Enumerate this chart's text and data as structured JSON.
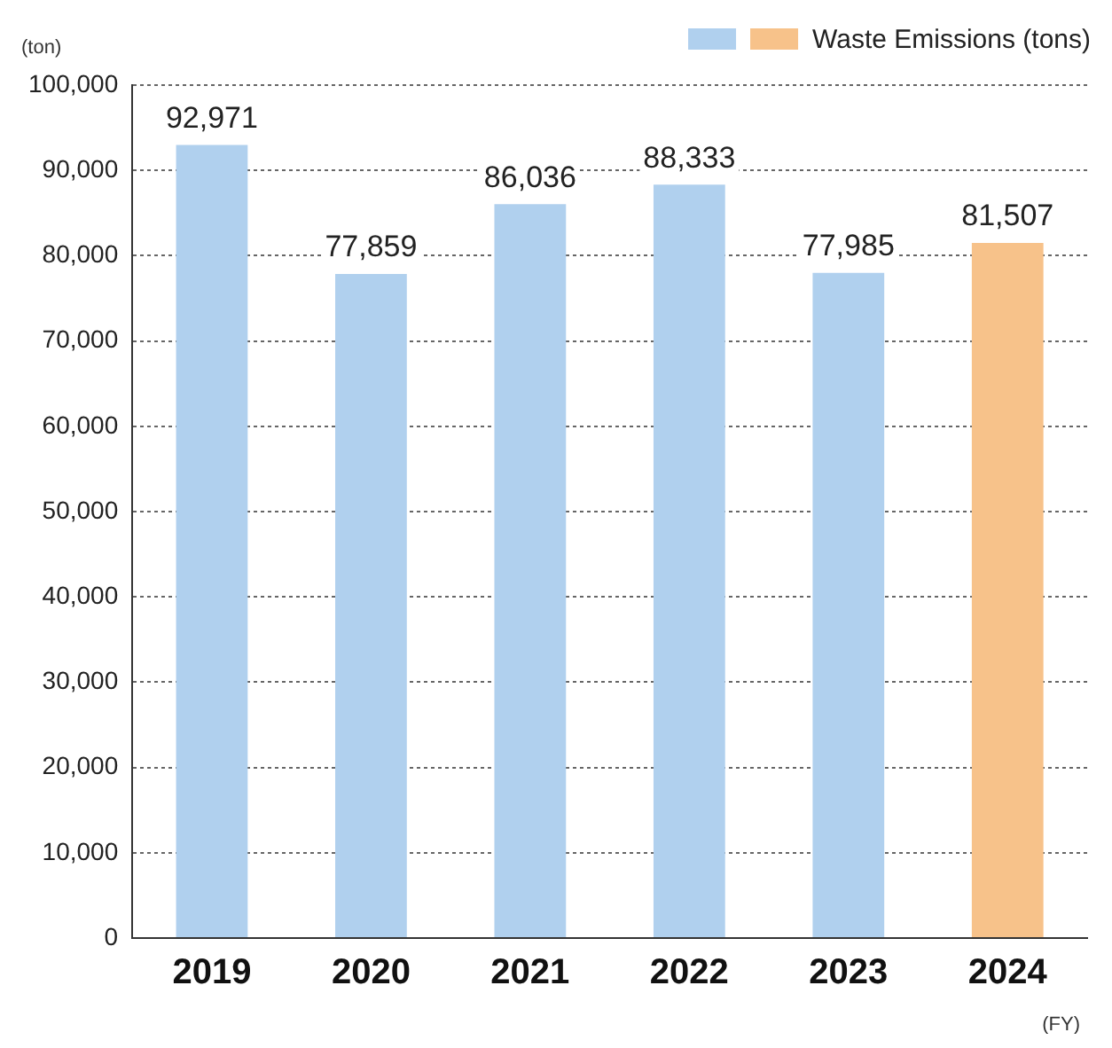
{
  "chart_data": {
    "type": "bar",
    "ylabel": "(ton)",
    "xlabel": "(FY)",
    "categories": [
      "2019",
      "2020",
      "2021",
      "2022",
      "2023",
      "2024"
    ],
    "series": [
      {
        "name": "Waste Emissions (tons)",
        "values": [
          92971,
          77859,
          86036,
          88333,
          77985,
          81507
        ],
        "value_labels": [
          "92,971",
          "77,859",
          "86,036",
          "88,333",
          "77,985",
          "81,507"
        ],
        "colors": [
          "#b0d0ee",
          "#b0d0ee",
          "#b0d0ee",
          "#b0d0ee",
          "#b0d0ee",
          "#f7c28a"
        ]
      }
    ],
    "ylim": [
      0,
      100000
    ],
    "yticks": [
      0,
      {
        "value": 10000,
        "label": "10,000"
      },
      {
        "value": 20000,
        "label": "20,000"
      },
      {
        "value": 30000,
        "label": "30,000"
      },
      {
        "value": 40000,
        "label": "40,000"
      },
      {
        "value": 50000,
        "label": "50,000"
      },
      {
        "value": 60000,
        "label": "60,000"
      },
      {
        "value": 70000,
        "label": "70,000"
      },
      {
        "value": 80000,
        "label": "80,000"
      },
      {
        "value": 90000,
        "label": "90,000"
      },
      {
        "value": 100000,
        "label": "100,000"
      }
    ],
    "grid": "y",
    "legend": "top right"
  }
}
